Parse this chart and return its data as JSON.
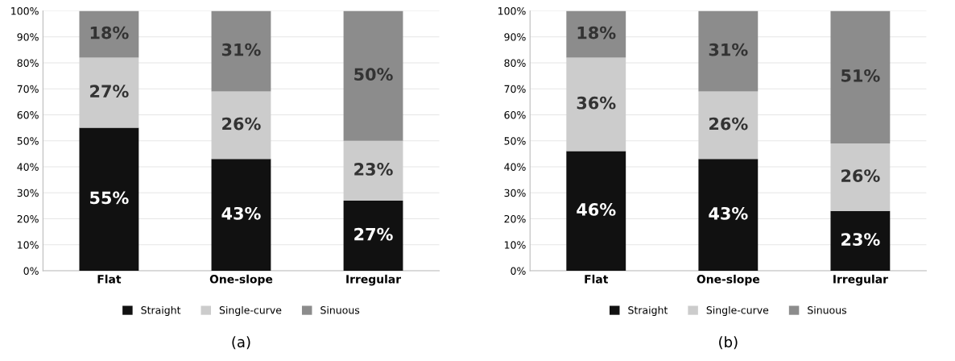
{
  "chart_data": [
    {
      "type": "bar",
      "stacked": true,
      "title": "(a)",
      "categories": [
        "Flat",
        "One-slope",
        "Irregular"
      ],
      "series": [
        {
          "name": "Straight",
          "color": "#111111",
          "values": [
            55,
            43,
            27
          ],
          "value_labels": [
            "55%",
            "43%",
            "27%"
          ]
        },
        {
          "name": "Single-curve",
          "color": "#cccccc",
          "values": [
            27,
            26,
            23
          ],
          "value_labels": [
            "27%",
            "26%",
            "23%"
          ]
        },
        {
          "name": "Sinuous",
          "color": "#8c8c8c",
          "values": [
            18,
            31,
            50
          ],
          "value_labels": [
            "18%",
            "31%",
            "50%"
          ]
        }
      ],
      "ylim": [
        0,
        100
      ],
      "yticks": [
        {
          "value": 0,
          "label": "0%"
        },
        {
          "value": 10,
          "label": "10%"
        },
        {
          "value": 20,
          "label": "20%"
        },
        {
          "value": 30,
          "label": "30%"
        },
        {
          "value": 40,
          "label": "40%"
        },
        {
          "value": 50,
          "label": "50%"
        },
        {
          "value": 60,
          "label": "60%"
        },
        {
          "value": 70,
          "label": "70%"
        },
        {
          "value": 80,
          "label": "80%"
        },
        {
          "value": 90,
          "label": "90%"
        },
        {
          "value": 100,
          "label": "100%"
        }
      ],
      "grid": "y",
      "legend": "bottom"
    },
    {
      "type": "bar",
      "stacked": true,
      "title": "(b)",
      "categories": [
        "Flat",
        "One-slope",
        "Irregular"
      ],
      "series": [
        {
          "name": "Straight",
          "color": "#111111",
          "values": [
            46,
            43,
            23
          ],
          "value_labels": [
            "46%",
            "43%",
            "23%"
          ]
        },
        {
          "name": "Single-curve",
          "color": "#cccccc",
          "values": [
            36,
            26,
            26
          ],
          "value_labels": [
            "36%",
            "26%",
            "26%"
          ]
        },
        {
          "name": "Sinuous",
          "color": "#8c8c8c",
          "values": [
            18,
            31,
            51
          ],
          "value_labels": [
            "18%",
            "31%",
            "51%"
          ]
        }
      ],
      "ylim": [
        0,
        100
      ],
      "yticks": [
        {
          "value": 0,
          "label": "0%"
        },
        {
          "value": 10,
          "label": "10%"
        },
        {
          "value": 20,
          "label": "20%"
        },
        {
          "value": 30,
          "label": "30%"
        },
        {
          "value": 40,
          "label": "40%"
        },
        {
          "value": 50,
          "label": "50%"
        },
        {
          "value": 60,
          "label": "60%"
        },
        {
          "value": 70,
          "label": "70%"
        },
        {
          "value": 80,
          "label": "80%"
        },
        {
          "value": 90,
          "label": "90%"
        },
        {
          "value": 100,
          "label": "100%"
        }
      ],
      "grid": "y",
      "legend": "bottom"
    }
  ]
}
